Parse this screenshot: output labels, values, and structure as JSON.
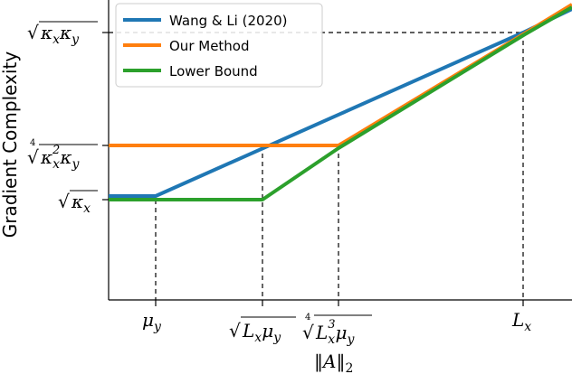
{
  "chart_data": {
    "type": "line",
    "ylabel": "Gradient Complexity",
    "xlabel": "",
    "grid": false,
    "legend_position": "top-left",
    "x_ticks": [
      "μ_y",
      "√(L_x μ_y)",
      "⁴√(L_x³ μ_y)",
      "L_x"
    ],
    "x_tick_extra_label": "‖A‖₂",
    "y_ticks": [
      "√κ_x",
      "⁴√(κ_x² κ_y)",
      "√(κ_x κ_y)"
    ],
    "series": [
      {
        "name": "Wang & Li (2020)",
        "color": "#1f77b4",
        "points": [
          [
            "left",
            "√κ_x"
          ],
          [
            "μ_y",
            "√κ_x"
          ],
          [
            "L_x",
            "√(κ_x κ_y)"
          ],
          [
            "right",
            "above √(κ_x κ_y)"
          ]
        ]
      },
      {
        "name": "Our Method",
        "color": "#ff7f0e",
        "points": [
          [
            "left",
            "⁴√(κ_x² κ_y)"
          ],
          [
            "⁴√(L_x³ μ_y)",
            "⁴√(κ_x² κ_y)"
          ],
          [
            "L_x",
            "√(κ_x κ_y)"
          ],
          [
            "right",
            "above √(κ_x κ_y)"
          ]
        ]
      },
      {
        "name": "Lower Bound",
        "color": "#2ca02c",
        "points": [
          [
            "left",
            "√κ_x"
          ],
          [
            "√(L_x μ_y)",
            "√κ_x"
          ],
          [
            "⁴√(L_x³ μ_y)",
            "⁴√(κ_x² κ_y)"
          ],
          [
            "L_x",
            "√(κ_x κ_y)"
          ],
          [
            "right",
            "above √(κ_x κ_y)"
          ]
        ]
      }
    ]
  }
}
